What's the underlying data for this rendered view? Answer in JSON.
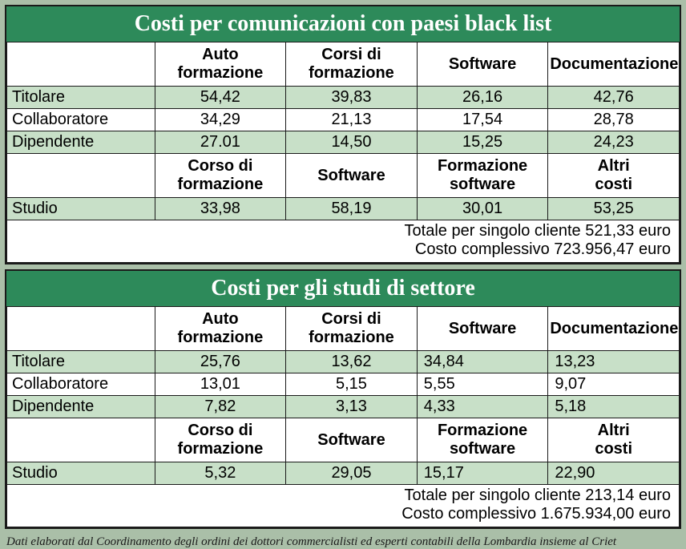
{
  "footnote": "Dati elaborati dal Coordinamento degli ordini dei dottori commercialisti ed esperti contabili della Lombardia insieme al Criet",
  "colors": {
    "header_bg": "#2d8a5a",
    "header_fg": "#ffffff",
    "row_accent": "#c8e0c8",
    "row_white": "#ffffff",
    "border": "#1a1a1a",
    "page_bg": "#aabfa8"
  },
  "typography": {
    "title_font": "Georgia serif bold",
    "title_size_pt": 28,
    "cell_size_pt": 20,
    "footnote_size_pt": 15
  },
  "tables": [
    {
      "title": "Costi per comunicazioni con paesi black list",
      "section1": {
        "headers": [
          "Auto formazione",
          "Corsi di formazione",
          "Software",
          "Documentazione"
        ],
        "rows": [
          {
            "label": "Titolare",
            "values": [
              "54,42",
              "39,83",
              "26,16",
              "42,76"
            ],
            "accent": true,
            "align": "center"
          },
          {
            "label": "Collaboratore",
            "values": [
              "34,29",
              "21,13",
              "17,54",
              "28,78"
            ],
            "accent": false,
            "align": "center"
          },
          {
            "label": "Dipendente",
            "values": [
              "27.01",
              "14,50",
              "15,25",
              "24,23"
            ],
            "accent": true,
            "align": "center"
          }
        ]
      },
      "section2": {
        "headers": [
          "Corso di formazione",
          "Software",
          "Formazione software",
          "Altri costi"
        ],
        "rows": [
          {
            "label": "Studio",
            "values": [
              "33,98",
              "58,19",
              "30,01",
              "53,25"
            ],
            "accent": true,
            "align": "center"
          }
        ]
      },
      "totals": [
        "Totale per singolo cliente 521,33 euro",
        "Costo complessivo 723.956,47 euro"
      ]
    },
    {
      "title": "Costi per gli studi di settore",
      "section1": {
        "headers": [
          "Auto formazione",
          "Corsi di formazione",
          "Software",
          "Documentazione"
        ],
        "rows": [
          {
            "label": "Titolare",
            "values": [
              "25,76",
              "13,62",
              "34,84",
              "13,23"
            ],
            "accent": true,
            "align": "mixed"
          },
          {
            "label": "Collaboratore",
            "values": [
              "13,01",
              "5,15",
              "5,55",
              "9,07"
            ],
            "accent": false,
            "align": "mixed"
          },
          {
            "label": "Dipendente",
            "values": [
              "7,82",
              "3,13",
              "4,33",
              "5,18"
            ],
            "accent": true,
            "align": "mixed"
          }
        ]
      },
      "section2": {
        "headers": [
          "Corso di formazione",
          "Software",
          "Formazione software",
          "Altri costi"
        ],
        "rows": [
          {
            "label": "Studio",
            "values": [
              "5,32",
              "29,05",
              "15,17",
              "22,90"
            ],
            "accent": true,
            "align": "mixed"
          }
        ]
      },
      "totals": [
        "Totale per singolo cliente 213,14 euro",
        "Costo complessivo  1.675.934,00 euro"
      ]
    }
  ]
}
